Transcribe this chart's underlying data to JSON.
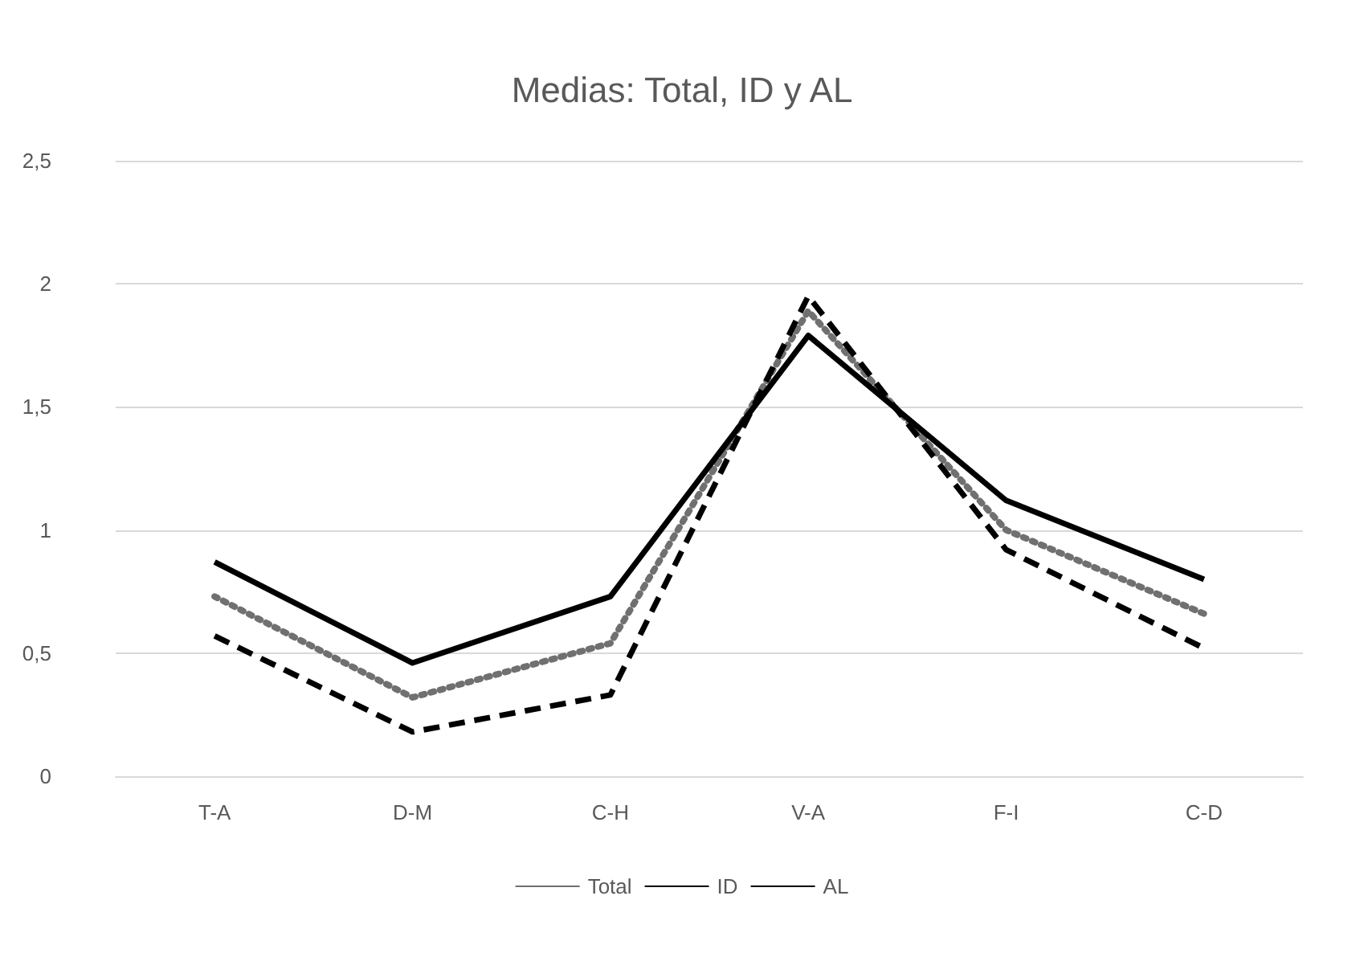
{
  "chart_data": {
    "type": "line",
    "title": "Medias: Total, ID y AL",
    "categories": [
      "T-A",
      "D-M",
      "C-H",
      "V-A",
      "F-I",
      "C-D"
    ],
    "series": [
      {
        "name": "Total",
        "color": "#707070",
        "line_style": "dotted",
        "values": [
          0.73,
          0.32,
          0.54,
          1.89,
          1.0,
          0.66
        ]
      },
      {
        "name": "ID",
        "color": "#000000",
        "line_style": "solid",
        "values": [
          0.87,
          0.46,
          0.73,
          1.79,
          1.12,
          0.8
        ]
      },
      {
        "name": "AL",
        "color": "#000000",
        "line_style": "dashed",
        "values": [
          0.57,
          0.18,
          0.33,
          1.95,
          0.92,
          0.52
        ]
      }
    ],
    "ylim": [
      0,
      2.5
    ],
    "yticks": [
      {
        "value": 0,
        "label": "0"
      },
      {
        "value": 0.5,
        "label": "0,5"
      },
      {
        "value": 1,
        "label": "1"
      },
      {
        "value": 1.5,
        "label": "1,5"
      },
      {
        "value": 2,
        "label": "2"
      },
      {
        "value": 2.5,
        "label": "2,5"
      }
    ],
    "grid": "y",
    "legend": "bottom",
    "marker": "none"
  }
}
